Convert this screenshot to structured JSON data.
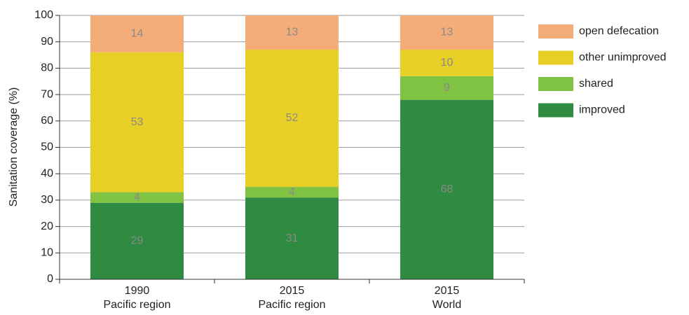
{
  "chart_data": {
    "type": "stacked_bar",
    "y_axis_label": "Sanitation coverage (%)",
    "categories": [
      [
        "1990",
        "Pacific region"
      ],
      [
        "2015",
        "Pacific region"
      ],
      [
        "2015",
        "World"
      ]
    ],
    "series": [
      {
        "name": "improved",
        "color": "#2e8b41",
        "values": [
          29,
          31,
          68
        ]
      },
      {
        "name": "shared",
        "color": "#80c242",
        "values": [
          4,
          4,
          9
        ]
      },
      {
        "name": "other unimproved",
        "color": "#e8cf25",
        "values": [
          53,
          52,
          10
        ]
      },
      {
        "name": "open defecation",
        "color": "#f4ad78",
        "values": [
          14,
          13,
          13
        ]
      }
    ],
    "ylim": [
      0,
      100
    ],
    "yticks": [
      0,
      10,
      20,
      30,
      40,
      50,
      60,
      70,
      80,
      90,
      100
    ],
    "grid": true,
    "legend": "right"
  }
}
